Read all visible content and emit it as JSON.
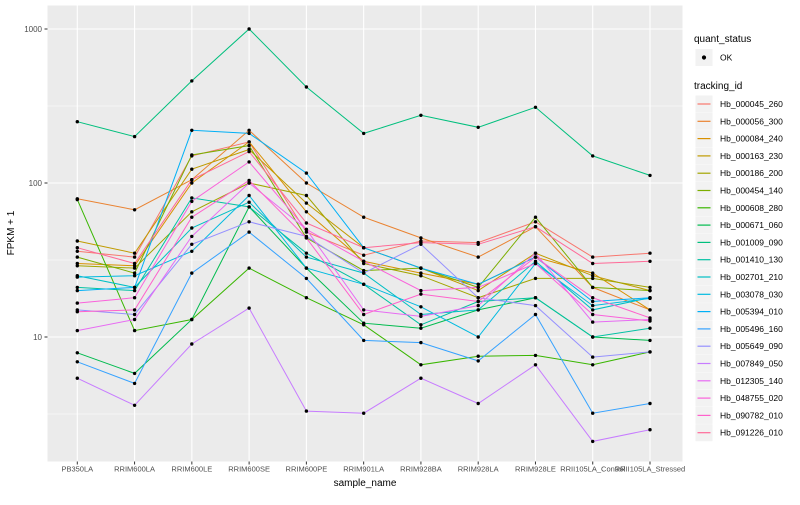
{
  "figure": {
    "panel_bg": "#EBEBEB",
    "grid_color": "#FFFFFF",
    "tick_text_color": "#4D4D4D",
    "legend_key_bg": "#F2F2F2",
    "point_color": "#000000"
  },
  "legend": {
    "quant_status_title": "quant_status",
    "quant_status_item": "OK",
    "tracking_id_title": "tracking_id"
  },
  "chart_data": {
    "type": "line",
    "title": "",
    "xlabel": "sample_name",
    "ylabel": "FPKM + 1",
    "y_scale": "log10",
    "y_ticks": [
      10,
      100,
      1000
    ],
    "y_minor": [
      3.1623,
      31.623,
      316.23
    ],
    "ylim": [
      2,
      1100
    ],
    "grid": true,
    "legend_position": "right",
    "point_marker": "black-dot",
    "categories": [
      "PB350LA",
      "RRIM600LA",
      "RRIM600LE",
      "RRIM600SE",
      "RRIM600PE",
      "RRIM901LA",
      "RRIM928BA",
      "RRIM928LA",
      "RRIM928LE",
      "RRII105LA_Control",
      "RRII105LA_Stressed"
    ],
    "series": [
      {
        "name": "Hb_000045_260",
        "color": "#F8766D",
        "values": [
          36,
          33,
          150,
          185,
          48,
          34,
          42,
          41,
          56,
          33,
          35
        ]
      },
      {
        "name": "Hb_000056_300",
        "color": "#EA8331",
        "values": [
          79,
          67,
          105,
          220,
          100,
          60,
          44,
          33,
          52,
          21,
          15
        ]
      },
      {
        "name": "Hb_000084_240",
        "color": "#D89000",
        "values": [
          30,
          29,
          100,
          185,
          65,
          31,
          26,
          22,
          33,
          26,
          15
        ]
      },
      {
        "name": "Hb_000163_230",
        "color": "#C09B00",
        "values": [
          42,
          35,
          123,
          165,
          74,
          38,
          28,
          20,
          35,
          25,
          20
        ]
      },
      {
        "name": "Hb_000186_200",
        "color": "#A3A500",
        "values": [
          29,
          28,
          65,
          100,
          83,
          30,
          25,
          18,
          24,
          24,
          21
        ]
      },
      {
        "name": "Hb_000454_140",
        "color": "#7CAE00",
        "values": [
          33,
          26,
          152,
          175,
          44,
          27,
          28,
          21,
          60,
          21,
          20
        ]
      },
      {
        "name": "Hb_000608_280",
        "color": "#39B600",
        "values": [
          78,
          11,
          13,
          28,
          18,
          12,
          6.6,
          7.5,
          7.6,
          6.6,
          8
        ]
      },
      {
        "name": "Hb_000671_060",
        "color": "#00BB4E",
        "values": [
          7.9,
          5.8,
          13,
          70,
          28,
          12.3,
          11.4,
          15,
          18,
          10,
          9.5
        ]
      },
      {
        "name": "Hb_001009_090",
        "color": "#00BF7D",
        "values": [
          250,
          200,
          460,
          1000,
          420,
          210,
          275,
          230,
          310,
          150,
          112
        ]
      },
      {
        "name": "Hb_001410_130",
        "color": "#00C1A3",
        "values": [
          21,
          20,
          80,
          70,
          35,
          22,
          12,
          17,
          18,
          10,
          11.4
        ]
      },
      {
        "name": "Hb_002701_210",
        "color": "#00BFC4",
        "values": [
          25,
          21,
          51,
          75,
          33,
          26,
          14,
          15,
          31,
          15,
          18
        ]
      },
      {
        "name": "Hb_003078_030",
        "color": "#00BAE0",
        "values": [
          24.5,
          25,
          36,
          83,
          28,
          22,
          15.7,
          10,
          30,
          16,
          17.8
        ]
      },
      {
        "name": "Hb_005394_010",
        "color": "#00B0F6",
        "values": [
          20,
          21,
          220,
          210,
          116,
          38,
          28,
          22,
          33,
          17,
          18
        ]
      },
      {
        "name": "Hb_005496_160",
        "color": "#35A2FF",
        "values": [
          6.9,
          5,
          26,
          48,
          24,
          9.5,
          9.2,
          7,
          14,
          3.2,
          3.7
        ]
      },
      {
        "name": "Hb_005649_090",
        "color": "#9590FF",
        "values": [
          15,
          14,
          40,
          56,
          45,
          26,
          40,
          18,
          16,
          7.4,
          8
        ]
      },
      {
        "name": "Hb_007849_050",
        "color": "#C77CFF",
        "values": [
          5.4,
          3.6,
          9,
          15.4,
          3.3,
          3.2,
          5.4,
          3.7,
          6.6,
          2.1,
          2.5
        ]
      },
      {
        "name": "Hb_012305_140",
        "color": "#E76BF3",
        "values": [
          11,
          13,
          45,
          100,
          50,
          15,
          13.6,
          16,
          35,
          12.5,
          13
        ]
      },
      {
        "name": "Hb_048755_020",
        "color": "#FA62DB",
        "values": [
          16.6,
          18,
          76,
          137,
          50,
          31,
          20,
          21,
          30,
          14,
          12.7
        ]
      },
      {
        "name": "Hb_090782_010",
        "color": "#FF61CC",
        "values": [
          14.6,
          15,
          60,
          104,
          44,
          14,
          19,
          17,
          33,
          18,
          13.3
        ]
      },
      {
        "name": "Hb_091226_010",
        "color": "#FF6A98",
        "values": [
          38,
          30,
          105,
          160,
          55,
          38,
          41,
          40,
          52,
          30,
          31
        ]
      }
    ]
  }
}
